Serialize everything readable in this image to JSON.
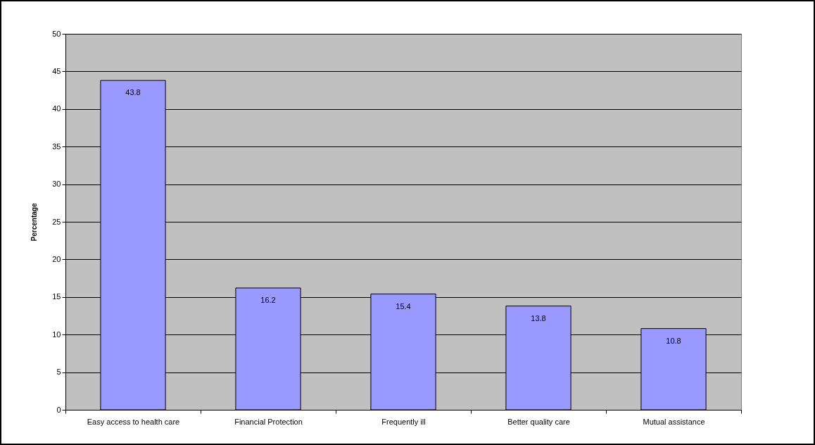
{
  "chart_data": {
    "type": "bar",
    "ylabel": "Percentage",
    "categories": [
      "Easy access to health care",
      "Financial Protection",
      "Frequently ill",
      "Better quality care",
      "Mutual assistance"
    ],
    "values": [
      43.8,
      16.2,
      15.4,
      13.8,
      10.8
    ],
    "color": "#9999ff",
    "ylim": [
      0,
      50
    ],
    "yticks": [
      0,
      5,
      10,
      15,
      20,
      25,
      30,
      35,
      40,
      45,
      50
    ],
    "grid": "y",
    "data_labels": true
  }
}
